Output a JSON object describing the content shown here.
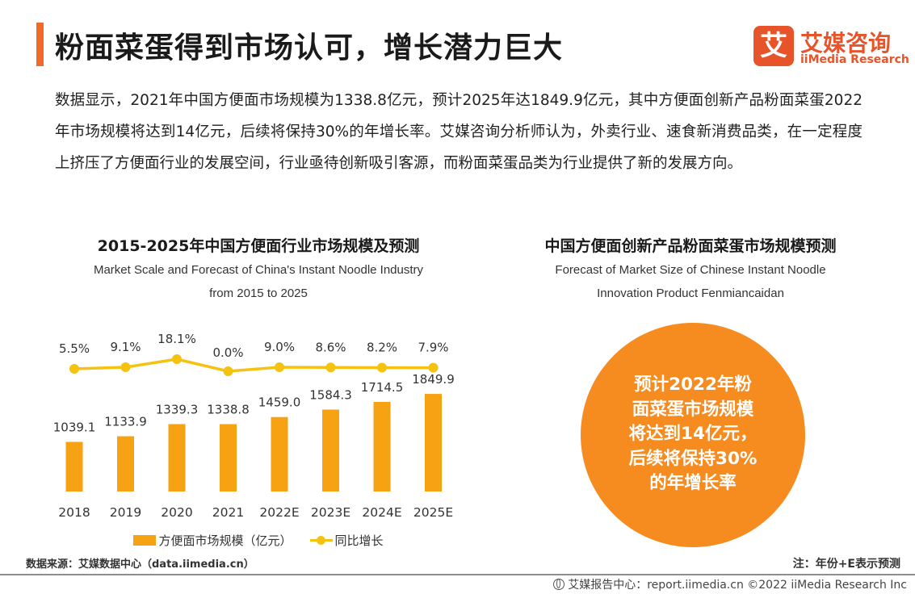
{
  "header": {
    "title": "粉面菜蛋得到市场认可，增长潜力巨大",
    "logo_mark": "艾",
    "logo_cn": "艾媒咨询",
    "logo_en": "iiMedia Research"
  },
  "intro_text": "数据显示，2021年中国方便面市场规模为1338.8亿元，预计2025年达1849.9亿元，其中方便面创新产品粉面菜蛋2022年市场规模将达到14亿元，后续将保持30%的年增长率。艾媒咨询分析师认为，外卖行业、速食新消费品类，在一定程度上挤压了方便面行业的发展空间，行业亟待创新吸引客源，而粉面菜蛋品类为行业提供了新的发展方向。",
  "chart_data": [
    {
      "type": "bar",
      "title": "2015-2025年中国方便面行业市场规模及预测",
      "subtitle_line1": "Market Scale and Forecast of China's Instant Noodle Industry",
      "subtitle_line2": "from 2015 to 2025",
      "categories": [
        "2018",
        "2019",
        "2020",
        "2021",
        "2022E",
        "2023E",
        "2024E",
        "2025E"
      ],
      "series": [
        {
          "name": "方便面市场规模（亿元）",
          "type": "bar",
          "color": "#f7a213",
          "values": [
            1039.1,
            1133.9,
            1339.3,
            1338.8,
            1459.0,
            1584.3,
            1714.5,
            1849.9
          ],
          "labels": [
            "1039.1",
            "1133.9",
            "1339.3",
            "1338.8",
            "1459.0",
            "1584.3",
            "1714.5",
            "1849.9"
          ]
        },
        {
          "name": "同比增长",
          "type": "line",
          "color": "#f5c211",
          "values": [
            5.5,
            9.1,
            18.1,
            0.0,
            9.0,
            8.6,
            8.2,
            7.9
          ],
          "labels": [
            "5.5%",
            "9.1%",
            "18.1%",
            "0.0%",
            "9.0%",
            "8.6%",
            "8.2%",
            "7.9%"
          ]
        }
      ],
      "legend": "bottom",
      "grid": false
    }
  ],
  "panel2": {
    "title": "中国方便面创新产品粉面菜蛋市场规模预测",
    "subtitle_line1": "Forecast of Market Size of Chinese Instant Noodle",
    "subtitle_line2": "Innovation Product Fenmiancaidan",
    "circle_lines": [
      "预计2022年粉",
      "面菜蛋市场规模",
      "将达到14亿元，",
      "后续将保持30%",
      "的年增长率"
    ],
    "circle_color": "#f68b1f"
  },
  "source": "数据来源：艾媒数据中心（data.iimedia.cn）",
  "note": "注：年份+E表示预测",
  "footer": "艾媒报告中心：report.iimedia.cn  ©2022  iiMedia Research  Inc"
}
